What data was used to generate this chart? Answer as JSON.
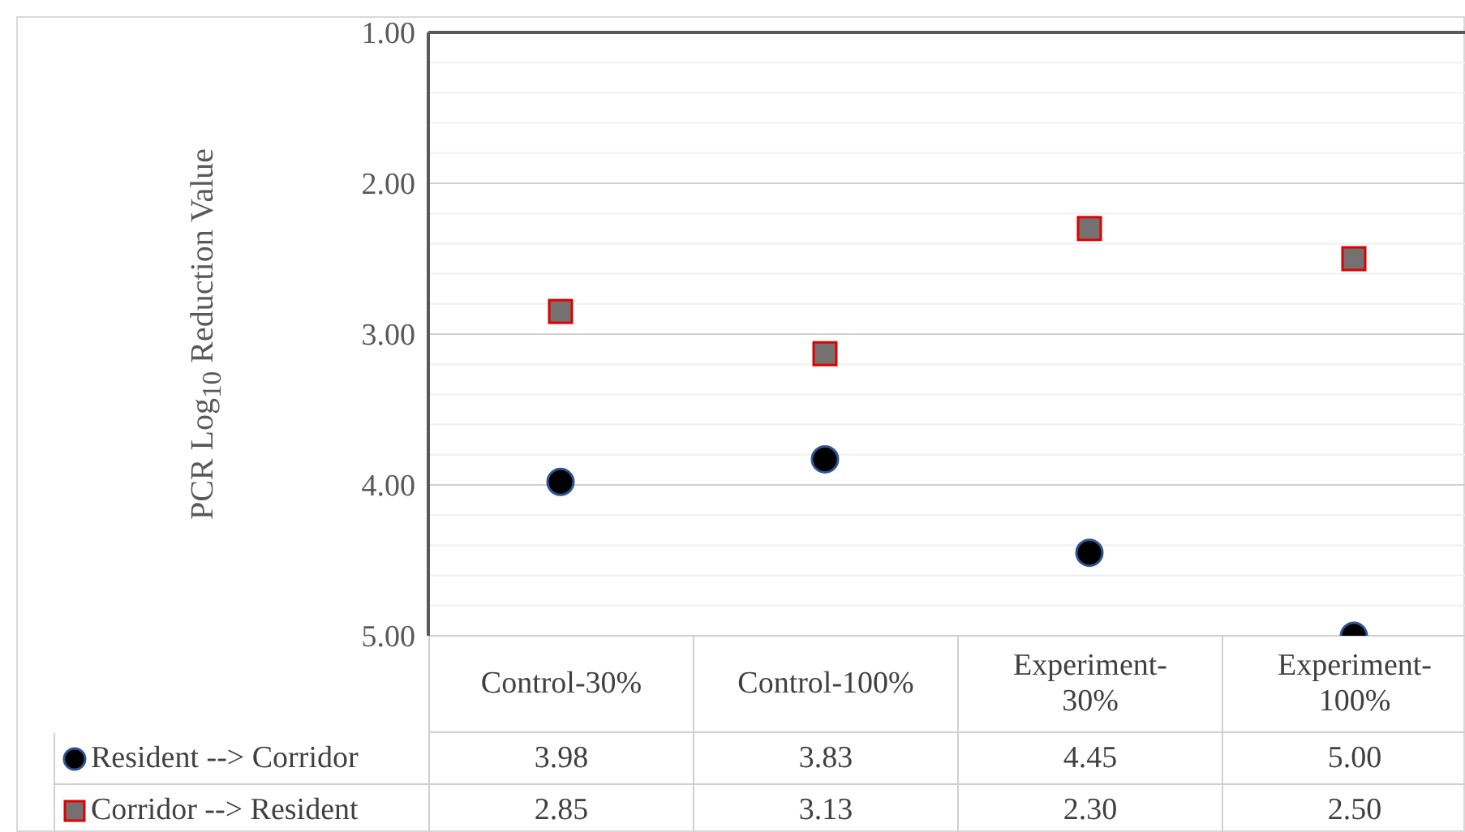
{
  "chart_data": {
    "type": "scatter",
    "ylabel": "PCR  Log$_{10}$ Reduction Value",
    "categories": [
      "Control-30%",
      "Control-100%",
      "Experiment-30%",
      "Experiment-100%"
    ],
    "series": [
      {
        "name": "Resident --> Corridor",
        "color": "#000000",
        "marker": "circle",
        "values": [
          3.98,
          3.83,
          4.45,
          5.0
        ],
        "value_labels": [
          "3.98",
          "3.83",
          "4.45",
          "5.00"
        ]
      },
      {
        "name": "Corridor --> Resident",
        "color": "#767171",
        "marker": "square",
        "values": [
          2.85,
          3.13,
          2.3,
          2.5
        ],
        "value_labels": [
          "2.85",
          "3.13",
          "2.30",
          "2.50"
        ]
      }
    ],
    "ylim": [
      5,
      1
    ],
    "yticks": [
      {
        "value": 1,
        "label": "1.00"
      },
      {
        "value": 1.2,
        "label": null
      },
      {
        "value": 1.4,
        "label": null
      },
      {
        "value": 1.6,
        "label": null
      },
      {
        "value": 1.8,
        "label": null
      },
      {
        "value": 2,
        "label": "2.00"
      },
      {
        "value": 2.2,
        "label": null
      },
      {
        "value": 2.4,
        "label": null
      },
      {
        "value": 2.6,
        "label": null
      },
      {
        "value": 2.8,
        "label": null
      },
      {
        "value": 3,
        "label": "3.00"
      },
      {
        "value": 3.2,
        "label": null
      },
      {
        "value": 3.4,
        "label": null
      },
      {
        "value": 3.6,
        "label": null
      },
      {
        "value": 3.8,
        "label": null
      },
      {
        "value": 4,
        "label": "4.00"
      },
      {
        "value": 4.2,
        "label": null
      },
      {
        "value": 4.4,
        "label": null
      },
      {
        "value": 4.6,
        "label": null
      },
      {
        "value": 4.8,
        "label": null
      },
      {
        "value": 5,
        "label": "5.00"
      }
    ],
    "grid": "y",
    "legend": "bottom",
    "data_labels": true
  }
}
